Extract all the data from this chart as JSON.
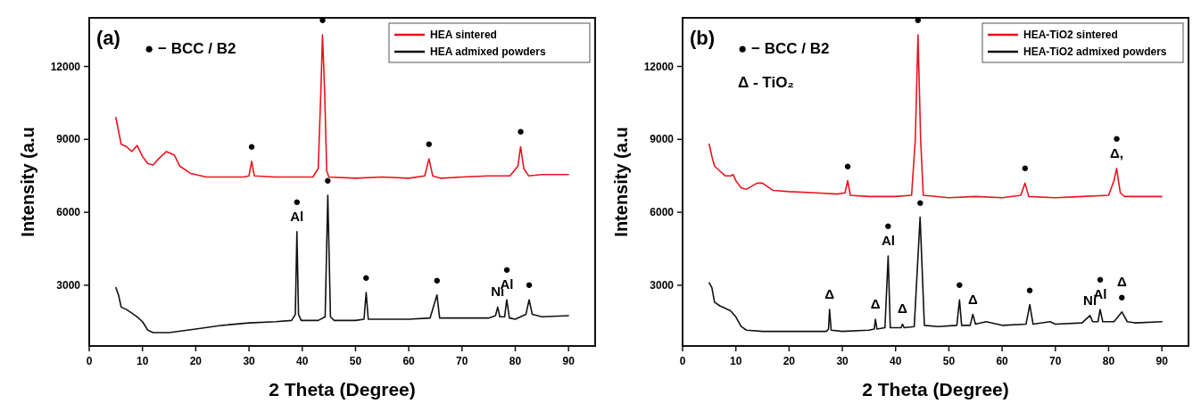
{
  "chart_data": [
    {
      "type": "line",
      "xlabel": "2 Theta (Degree)",
      "ylabel": "Intensity (a.u",
      "xlim": [
        0,
        95
      ],
      "ylim": [
        500,
        14000
      ],
      "xticks": [
        0,
        10,
        20,
        30,
        40,
        50,
        60,
        70,
        80,
        90
      ],
      "yticks": [
        3000,
        6000,
        9000,
        12000
      ],
      "legend": "top right",
      "grid": false,
      "line_style": "solid",
      "marker": "none",
      "series": [
        {
          "name": "HEA sintered",
          "color": "#e8141c",
          "x": [
            5,
            6,
            7,
            8,
            9,
            10,
            11,
            12,
            13,
            14.5,
            16,
            17,
            19,
            22,
            25,
            29,
            30,
            30.5,
            31,
            35,
            39,
            42,
            43,
            43.5,
            43.8,
            44.2,
            44.6,
            45,
            50,
            55,
            60,
            63,
            63.8,
            64.5,
            66,
            70,
            75,
            79,
            80.5,
            81,
            81.6,
            82.5,
            85,
            90
          ],
          "values": [
            9900,
            8800,
            8700,
            8500,
            8750,
            8300,
            8000,
            7950,
            8200,
            8500,
            8350,
            7900,
            7600,
            7450,
            7450,
            7450,
            7500,
            8100,
            7500,
            7450,
            7450,
            7450,
            7800,
            11000,
            13300,
            11000,
            7700,
            7450,
            7400,
            7450,
            7400,
            7500,
            8200,
            7500,
            7400,
            7450,
            7500,
            7500,
            7900,
            8700,
            7800,
            7500,
            7550,
            7550
          ]
        },
        {
          "name": "HEA  admixed powders",
          "color": "#111111",
          "x": [
            5,
            5.5,
            6,
            7,
            8,
            9,
            10,
            11,
            12,
            15,
            20,
            25,
            30,
            35,
            38,
            38.7,
            39,
            39.3,
            39.8,
            43,
            44.3,
            44.8,
            45.3,
            46,
            50,
            51.6,
            52,
            52.4,
            55,
            60,
            64,
            65.3,
            65.8,
            70,
            75,
            76.3,
            76.7,
            77.1,
            78,
            78.4,
            78.9,
            80,
            82,
            82.6,
            83.2,
            85,
            90
          ],
          "values": [
            2900,
            2600,
            2100,
            2000,
            1850,
            1700,
            1500,
            1150,
            1050,
            1050,
            1200,
            1350,
            1450,
            1500,
            1550,
            1800,
            5200,
            1800,
            1550,
            1550,
            1700,
            6700,
            1700,
            1550,
            1550,
            1600,
            2700,
            1600,
            1600,
            1600,
            1650,
            2600,
            1650,
            1650,
            1650,
            1750,
            2100,
            1700,
            1700,
            2400,
            1650,
            1600,
            1800,
            2400,
            1800,
            1700,
            1750
          ]
        }
      ],
      "annotations": [
        "(a)",
        "● − BCC / B2",
        {
          "text": "●",
          "x": 30.5,
          "y": 8100
        },
        {
          "text": "●",
          "x": 43.8,
          "y": 13300
        },
        {
          "text": "●",
          "x": 63.8,
          "y": 8200
        },
        {
          "text": "●",
          "x": 81,
          "y": 8700
        },
        {
          "text": "●",
          "x": 44.8,
          "y": 6700
        },
        {
          "text": "Al",
          "x": 39,
          "y": 5200
        },
        {
          "text": "●",
          "x": 39,
          "y": 5200
        },
        {
          "text": "●",
          "x": 52,
          "y": 2700
        },
        {
          "text": "●",
          "x": 65.3,
          "y": 2600
        },
        {
          "text": "Ni",
          "x": 76.7,
          "y": 2100
        },
        {
          "text": "Al",
          "x": 78.4,
          "y": 2400
        },
        {
          "text": "●",
          "x": 78.4,
          "y": 2400
        },
        {
          "text": "●",
          "x": 82.6,
          "y": 2400
        }
      ]
    },
    {
      "type": "line",
      "xlabel": "2 Theta (Degree)",
      "ylabel": "Intensity (a.u",
      "xlim": [
        0,
        95
      ],
      "ylim": [
        500,
        14000
      ],
      "xticks": [
        0,
        10,
        20,
        30,
        40,
        50,
        60,
        70,
        80,
        90
      ],
      "yticks": [
        3000,
        6000,
        9000,
        12000
      ],
      "legend": "top right",
      "grid": false,
      "line_style": "solid",
      "marker": "none",
      "series": [
        {
          "name": "HEA-TiO2 sintered",
          "color": "#e8141c",
          "x": [
            5,
            5.5,
            6,
            7,
            8,
            9,
            9.5,
            10,
            11,
            12,
            14,
            15,
            17,
            20,
            25,
            29,
            30.5,
            31,
            31.5,
            35,
            40,
            43,
            43.7,
            44.2,
            44.7,
            45.2,
            50,
            55,
            60,
            63.5,
            64.3,
            65,
            70,
            75,
            80,
            81,
            81.5,
            82.2,
            83,
            90
          ],
          "values": [
            8800,
            8300,
            7900,
            7700,
            7500,
            7500,
            7550,
            7300,
            7000,
            6950,
            7200,
            7200,
            6900,
            6850,
            6800,
            6750,
            6800,
            7300,
            6700,
            6650,
            6650,
            6700,
            9000,
            13300,
            9000,
            6700,
            6600,
            6650,
            6600,
            6700,
            7200,
            6650,
            6600,
            6650,
            6700,
            7300,
            7800,
            6800,
            6650,
            6650
          ]
        },
        {
          "name": "HEA-TiO2  admixed powders",
          "color": "#111111",
          "x": [
            5,
            5.5,
            6,
            7,
            8,
            9,
            10,
            11,
            12,
            15,
            20,
            27,
            27.4,
            27.6,
            27.9,
            30,
            35,
            36,
            36.2,
            36.5,
            38,
            38.6,
            39,
            41,
            41.3,
            41.6,
            43.5,
            44.6,
            45.4,
            48,
            51.5,
            52,
            52.4,
            54,
            54.5,
            55,
            57,
            60,
            64.5,
            65.2,
            65.8,
            69,
            70,
            75,
            76.5,
            77,
            78,
            78.4,
            78.9,
            81,
            82.5,
            83.5,
            85,
            90
          ],
          "values": [
            3100,
            2900,
            2300,
            2150,
            2050,
            1950,
            1700,
            1300,
            1150,
            1100,
            1100,
            1100,
            1200,
            2000,
            1150,
            1100,
            1150,
            1200,
            1600,
            1200,
            1250,
            4200,
            1250,
            1250,
            1400,
            1250,
            1300,
            5800,
            1350,
            1300,
            1350,
            2400,
            1350,
            1350,
            1800,
            1400,
            1500,
            1350,
            1400,
            2200,
            1400,
            1500,
            1400,
            1450,
            1750,
            1500,
            1500,
            2000,
            1500,
            1500,
            1900,
            1500,
            1450,
            1500
          ]
        }
      ],
      "annotations": [
        "(b)",
        "● − BCC / B2",
        "Δ - TiO₂",
        {
          "text": "●",
          "x": 31,
          "y": 7300
        },
        {
          "text": "●",
          "x": 44.2,
          "y": 13300
        },
        {
          "text": "●",
          "x": 64.3,
          "y": 7200
        },
        {
          "text": "Δ,",
          "x": 81.5,
          "y": 7800
        },
        {
          "text": "●",
          "x": 81.5,
          "y": 7800
        },
        {
          "text": "●",
          "x": 44.6,
          "y": 5800
        },
        {
          "text": "Al",
          "x": 38.6,
          "y": 4200
        },
        {
          "text": "●",
          "x": 38.6,
          "y": 4200
        },
        {
          "text": "Δ",
          "x": 27.6,
          "y": 2000
        },
        {
          "text": "Δ",
          "x": 36.2,
          "y": 1600
        },
        {
          "text": "Δ",
          "x": 41.3,
          "y": 1400
        },
        {
          "text": "●",
          "x": 52,
          "y": 2400
        },
        {
          "text": "Δ",
          "x": 54.5,
          "y": 1800
        },
        {
          "text": "●",
          "x": 65.2,
          "y": 2200
        },
        {
          "text": "Ni",
          "x": 76.5,
          "y": 1750
        },
        {
          "text": "Al",
          "x": 78.4,
          "y": 2000
        },
        {
          "text": "●",
          "x": 78.4,
          "y": 2000
        },
        {
          "text": "●",
          "x": 82.5,
          "y": 1900
        },
        {
          "text": "Δ",
          "x": 82.5,
          "y": 1900
        }
      ]
    }
  ]
}
